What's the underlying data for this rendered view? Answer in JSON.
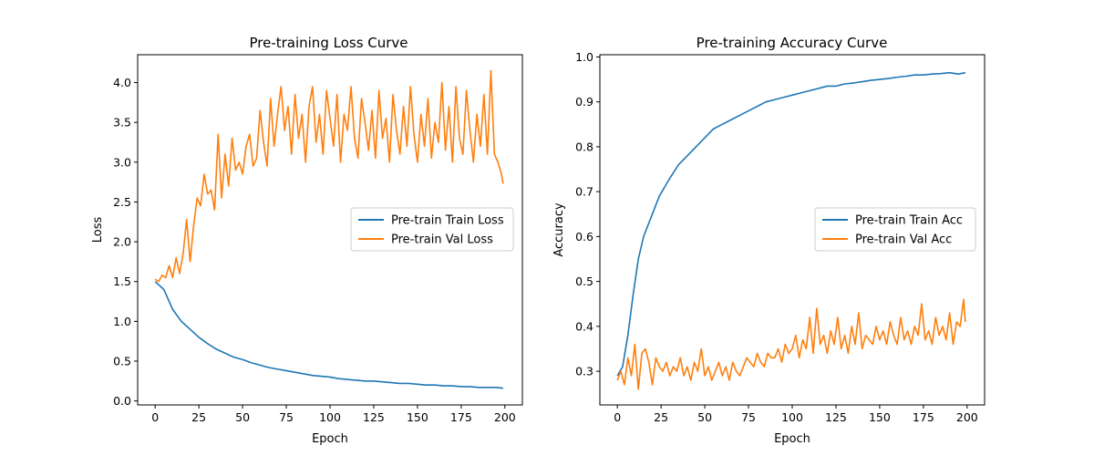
{
  "chart_data": [
    {
      "type": "line",
      "title": "Pre-training Loss Curve",
      "xlabel": "Epoch",
      "ylabel": "Loss",
      "xlim": [
        -10,
        210
      ],
      "ylim": [
        -0.05,
        4.35
      ],
      "xticks": [
        0,
        25,
        50,
        75,
        100,
        125,
        150,
        175,
        200
      ],
      "yticks": [
        0.0,
        0.5,
        1.0,
        1.5,
        2.0,
        2.5,
        3.0,
        3.5,
        4.0
      ],
      "ytick_decimals": 1,
      "grid": false,
      "legend_position": "center-right",
      "series": [
        {
          "name": "Pre-train Train Loss",
          "color": "#1f77b4",
          "x": [
            0,
            5,
            10,
            15,
            20,
            25,
            30,
            35,
            40,
            45,
            50,
            55,
            60,
            65,
            70,
            75,
            80,
            85,
            90,
            95,
            100,
            105,
            110,
            115,
            120,
            125,
            130,
            135,
            140,
            145,
            150,
            155,
            160,
            165,
            170,
            175,
            180,
            185,
            190,
            195,
            199
          ],
          "y": [
            1.5,
            1.4,
            1.15,
            1.0,
            0.9,
            0.8,
            0.72,
            0.65,
            0.6,
            0.55,
            0.52,
            0.48,
            0.45,
            0.42,
            0.4,
            0.38,
            0.36,
            0.34,
            0.32,
            0.31,
            0.3,
            0.28,
            0.27,
            0.26,
            0.25,
            0.25,
            0.24,
            0.23,
            0.22,
            0.22,
            0.21,
            0.2,
            0.2,
            0.19,
            0.19,
            0.18,
            0.18,
            0.17,
            0.17,
            0.17,
            0.16
          ]
        },
        {
          "name": "Pre-train Val Loss",
          "color": "#ff7f0e",
          "x": [
            0,
            2,
            4,
            6,
            8,
            10,
            12,
            14,
            16,
            18,
            20,
            22,
            24,
            26,
            28,
            30,
            32,
            34,
            36,
            38,
            40,
            42,
            44,
            46,
            48,
            50,
            52,
            54,
            56,
            58,
            60,
            62,
            64,
            66,
            68,
            70,
            72,
            74,
            76,
            78,
            80,
            82,
            84,
            86,
            88,
            90,
            92,
            94,
            96,
            98,
            100,
            102,
            104,
            106,
            108,
            110,
            112,
            114,
            116,
            118,
            120,
            122,
            124,
            126,
            128,
            130,
            132,
            134,
            136,
            138,
            140,
            142,
            144,
            146,
            148,
            150,
            152,
            154,
            156,
            158,
            160,
            162,
            164,
            166,
            168,
            170,
            172,
            174,
            176,
            178,
            180,
            182,
            184,
            186,
            188,
            190,
            192,
            194,
            196,
            198,
            199
          ],
          "y": [
            1.53,
            1.5,
            1.58,
            1.55,
            1.7,
            1.55,
            1.8,
            1.6,
            1.85,
            2.28,
            1.75,
            2.2,
            2.55,
            2.45,
            2.85,
            2.6,
            2.65,
            2.4,
            3.35,
            2.55,
            3.1,
            2.7,
            3.3,
            2.9,
            3.0,
            2.85,
            3.2,
            3.35,
            2.95,
            3.05,
            3.65,
            3.25,
            2.95,
            3.8,
            3.2,
            3.6,
            3.95,
            3.4,
            3.7,
            3.1,
            3.85,
            3.3,
            3.6,
            3.0,
            3.7,
            3.95,
            3.25,
            3.6,
            3.1,
            3.9,
            3.55,
            3.2,
            3.85,
            3.0,
            3.6,
            3.4,
            3.95,
            3.3,
            3.05,
            3.8,
            3.5,
            3.15,
            3.65,
            3.05,
            3.9,
            3.3,
            3.55,
            3.0,
            3.85,
            3.4,
            3.1,
            3.7,
            3.2,
            3.95,
            3.35,
            3.0,
            3.6,
            3.2,
            3.8,
            3.05,
            3.5,
            3.25,
            4.0,
            3.15,
            3.7,
            3.0,
            3.95,
            3.3,
            3.1,
            3.9,
            3.4,
            3.0,
            3.6,
            3.2,
            3.85,
            3.1,
            4.15,
            3.1,
            3.0,
            2.85,
            2.73
          ]
        }
      ]
    },
    {
      "type": "line",
      "title": "Pre-training Accuracy Curve",
      "xlabel": "Epoch",
      "ylabel": "Accuracy",
      "xlim": [
        -10,
        210
      ],
      "ylim": [
        0.225,
        1.005
      ],
      "xticks": [
        0,
        25,
        50,
        75,
        100,
        125,
        150,
        175,
        200
      ],
      "yticks": [
        0.3,
        0.4,
        0.5,
        0.6,
        0.7,
        0.8,
        0.9,
        1.0
      ],
      "ytick_decimals": 1,
      "grid": false,
      "legend_position": "center-right",
      "series": [
        {
          "name": "Pre-train Train Acc",
          "color": "#1f77b4",
          "x": [
            0,
            3,
            6,
            9,
            12,
            15,
            18,
            21,
            24,
            27,
            30,
            35,
            40,
            45,
            50,
            55,
            60,
            65,
            70,
            75,
            80,
            85,
            90,
            95,
            100,
            105,
            110,
            115,
            120,
            125,
            130,
            135,
            140,
            145,
            150,
            155,
            160,
            165,
            170,
            175,
            180,
            185,
            190,
            195,
            199
          ],
          "y": [
            0.29,
            0.31,
            0.38,
            0.47,
            0.55,
            0.6,
            0.63,
            0.66,
            0.69,
            0.71,
            0.73,
            0.76,
            0.78,
            0.8,
            0.82,
            0.84,
            0.85,
            0.86,
            0.87,
            0.88,
            0.89,
            0.9,
            0.905,
            0.91,
            0.915,
            0.92,
            0.925,
            0.93,
            0.935,
            0.935,
            0.94,
            0.942,
            0.945,
            0.948,
            0.95,
            0.952,
            0.955,
            0.957,
            0.96,
            0.96,
            0.962,
            0.963,
            0.965,
            0.962,
            0.965
          ]
        },
        {
          "name": "Pre-train Val Acc",
          "color": "#ff7f0e",
          "x": [
            0,
            2,
            4,
            6,
            8,
            10,
            12,
            14,
            16,
            18,
            20,
            22,
            24,
            26,
            28,
            30,
            32,
            34,
            36,
            38,
            40,
            42,
            44,
            46,
            48,
            50,
            52,
            54,
            56,
            58,
            60,
            62,
            64,
            66,
            68,
            70,
            72,
            74,
            76,
            78,
            80,
            82,
            84,
            86,
            88,
            90,
            92,
            94,
            96,
            98,
            100,
            102,
            104,
            106,
            108,
            110,
            112,
            114,
            116,
            118,
            120,
            122,
            124,
            126,
            128,
            130,
            132,
            134,
            136,
            138,
            140,
            142,
            144,
            146,
            148,
            150,
            152,
            154,
            156,
            158,
            160,
            162,
            164,
            166,
            168,
            170,
            172,
            174,
            176,
            178,
            180,
            182,
            184,
            186,
            188,
            190,
            192,
            194,
            196,
            198,
            199
          ],
          "y": [
            0.28,
            0.3,
            0.27,
            0.33,
            0.29,
            0.36,
            0.26,
            0.34,
            0.35,
            0.32,
            0.27,
            0.33,
            0.31,
            0.3,
            0.32,
            0.29,
            0.31,
            0.3,
            0.33,
            0.29,
            0.31,
            0.28,
            0.32,
            0.3,
            0.35,
            0.29,
            0.31,
            0.28,
            0.3,
            0.32,
            0.29,
            0.31,
            0.28,
            0.32,
            0.3,
            0.29,
            0.31,
            0.33,
            0.32,
            0.31,
            0.34,
            0.32,
            0.31,
            0.34,
            0.33,
            0.33,
            0.35,
            0.32,
            0.36,
            0.34,
            0.35,
            0.38,
            0.33,
            0.37,
            0.35,
            0.42,
            0.34,
            0.44,
            0.36,
            0.38,
            0.34,
            0.39,
            0.36,
            0.42,
            0.35,
            0.38,
            0.34,
            0.4,
            0.36,
            0.43,
            0.35,
            0.38,
            0.37,
            0.36,
            0.4,
            0.37,
            0.39,
            0.36,
            0.41,
            0.38,
            0.36,
            0.42,
            0.37,
            0.39,
            0.36,
            0.4,
            0.38,
            0.45,
            0.37,
            0.39,
            0.36,
            0.42,
            0.38,
            0.4,
            0.37,
            0.43,
            0.36,
            0.41,
            0.4,
            0.46,
            0.41
          ]
        }
      ]
    }
  ]
}
